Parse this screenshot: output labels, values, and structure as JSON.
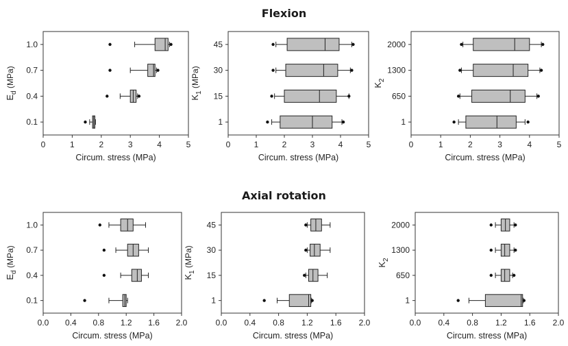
{
  "section_titles": [
    "Flexion",
    "Axial rotation"
  ],
  "chart_data": [
    {
      "type": "box",
      "section": "Flexion",
      "title": "",
      "xlabel": "Circum. stress (MPa)",
      "ylabel": "E",
      "ylabel_sub": "d",
      "ylabel_unit": "(MPa)",
      "xlim": [
        0,
        5
      ],
      "xticks": [
        "0",
        "1",
        "2",
        "3",
        "4",
        "5"
      ],
      "categories": [
        "1.0",
        "0.7",
        "0.4",
        "0.1"
      ],
      "boxes": [
        {
          "wlo": 3.15,
          "q1": 3.85,
          "med": 4.2,
          "q3": 4.3,
          "whi": 4.35,
          "outliers": [
            2.3,
            4.4
          ]
        },
        {
          "wlo": 3.0,
          "q1": 3.6,
          "med": 3.8,
          "q3": 3.85,
          "whi": 3.9,
          "outliers": [
            2.3,
            3.95
          ]
        },
        {
          "wlo": 2.65,
          "q1": 3.0,
          "med": 3.1,
          "q3": 3.2,
          "whi": 3.25,
          "outliers": [
            2.2,
            3.3
          ]
        },
        {
          "wlo": 1.6,
          "q1": 1.7,
          "med": 1.74,
          "q3": 1.78,
          "whi": 1.8,
          "outliers": [
            1.45
          ]
        }
      ]
    },
    {
      "type": "box",
      "section": "Flexion",
      "title": "",
      "xlabel": "Circum. stress (MPa)",
      "ylabel": "K",
      "ylabel_sub": "1",
      "ylabel_unit": "(MPa)",
      "xlim": [
        0,
        5
      ],
      "xticks": [
        "0",
        "1",
        "2",
        "3",
        "4",
        "5"
      ],
      "categories": [
        "45",
        "30",
        "15",
        "1"
      ],
      "boxes": [
        {
          "wlo": 1.7,
          "q1": 2.1,
          "med": 3.45,
          "q3": 3.95,
          "whi": 4.4,
          "outliers": [
            1.6,
            4.45
          ]
        },
        {
          "wlo": 1.7,
          "q1": 2.05,
          "med": 3.4,
          "q3": 3.9,
          "whi": 4.35,
          "outliers": [
            1.6,
            4.4
          ]
        },
        {
          "wlo": 1.65,
          "q1": 2.0,
          "med": 3.25,
          "q3": 3.85,
          "whi": 4.3,
          "outliers": [
            1.55,
            4.3
          ]
        },
        {
          "wlo": 1.55,
          "q1": 1.85,
          "med": 3.0,
          "q3": 3.7,
          "whi": 4.05,
          "outliers": [
            1.4,
            4.1
          ]
        }
      ]
    },
    {
      "type": "box",
      "section": "Flexion",
      "title": "",
      "xlabel": "Circum. stress (MPa)",
      "ylabel": "K",
      "ylabel_sub": "2",
      "ylabel_unit": "",
      "xlim": [
        0,
        5
      ],
      "xticks": [
        "0",
        "1",
        "2",
        "3",
        "4",
        "5"
      ],
      "categories": [
        "2000",
        "1300",
        "650",
        "1"
      ],
      "boxes": [
        {
          "wlo": 1.75,
          "q1": 2.1,
          "med": 3.5,
          "q3": 4.0,
          "whi": 4.4,
          "outliers": [
            1.7,
            4.45
          ]
        },
        {
          "wlo": 1.7,
          "q1": 2.1,
          "med": 3.45,
          "q3": 3.95,
          "whi": 4.35,
          "outliers": [
            1.65,
            4.4
          ]
        },
        {
          "wlo": 1.65,
          "q1": 2.05,
          "med": 3.35,
          "q3": 3.85,
          "whi": 4.25,
          "outliers": [
            1.6,
            4.3
          ]
        },
        {
          "wlo": 1.6,
          "q1": 1.85,
          "med": 2.9,
          "q3": 3.55,
          "whi": 3.85,
          "outliers": [
            1.45,
            3.95
          ]
        }
      ]
    },
    {
      "type": "box",
      "section": "Axial rotation",
      "title": "",
      "xlabel": "Circum. stress (MPa)",
      "ylabel": "E",
      "ylabel_sub": "d",
      "ylabel_unit": "(MPa)",
      "xlim": [
        0,
        2
      ],
      "xticks": [
        "0.0",
        "0.4",
        "0.8",
        "1.2",
        "1.6",
        "2.0"
      ],
      "categories": [
        "1.0",
        "0.7",
        "0.4",
        "0.1"
      ],
      "boxes": [
        {
          "wlo": 0.95,
          "q1": 1.12,
          "med": 1.22,
          "q3": 1.3,
          "whi": 1.48,
          "outliers": [
            0.82
          ]
        },
        {
          "wlo": 1.05,
          "q1": 1.22,
          "med": 1.3,
          "q3": 1.38,
          "whi": 1.52,
          "outliers": [
            0.88
          ]
        },
        {
          "wlo": 1.12,
          "q1": 1.28,
          "med": 1.36,
          "q3": 1.42,
          "whi": 1.52,
          "outliers": [
            0.88
          ]
        },
        {
          "wlo": 0.95,
          "q1": 1.15,
          "med": 1.18,
          "q3": 1.2,
          "whi": 1.22,
          "outliers": [
            0.6
          ]
        }
      ]
    },
    {
      "type": "box",
      "section": "Axial rotation",
      "title": "",
      "xlabel": "Circum. stress (MPa)",
      "ylabel": "K",
      "ylabel_sub": "1",
      "ylabel_unit": "(MPa)",
      "xlim": [
        0,
        2
      ],
      "xticks": [
        "0.0",
        "0.4",
        "0.8",
        "1.2",
        "1.6",
        "2.0"
      ],
      "categories": [
        "45",
        "30",
        "15",
        "1"
      ],
      "boxes": [
        {
          "wlo": 1.2,
          "q1": 1.25,
          "med": 1.32,
          "q3": 1.4,
          "whi": 1.52,
          "outliers": [
            1.18
          ]
        },
        {
          "wlo": 1.2,
          "q1": 1.24,
          "med": 1.3,
          "q3": 1.38,
          "whi": 1.52,
          "outliers": [
            1.18
          ]
        },
        {
          "wlo": 1.18,
          "q1": 1.22,
          "med": 1.28,
          "q3": 1.35,
          "whi": 1.48,
          "outliers": [
            1.16
          ]
        },
        {
          "wlo": 0.78,
          "q1": 0.95,
          "med": 1.22,
          "q3": 1.25,
          "whi": 1.26,
          "outliers": [
            0.6,
            1.27
          ]
        }
      ]
    },
    {
      "type": "box",
      "section": "Axial rotation",
      "title": "",
      "xlabel": "Circum. stress (MPa)",
      "ylabel": "K",
      "ylabel_sub": "2",
      "ylabel_unit": "",
      "xlim": [
        0,
        2
      ],
      "xticks": [
        "0.0",
        "0.4",
        "0.8",
        "1.2",
        "1.6",
        "2.0"
      ],
      "categories": [
        "2000",
        "1300",
        "650",
        "1"
      ],
      "boxes": [
        {
          "wlo": 1.12,
          "q1": 1.2,
          "med": 1.26,
          "q3": 1.32,
          "whi": 1.38,
          "outliers": [
            1.06,
            1.4
          ]
        },
        {
          "wlo": 1.12,
          "q1": 1.2,
          "med": 1.25,
          "q3": 1.32,
          "whi": 1.38,
          "outliers": [
            1.06,
            1.4
          ]
        },
        {
          "wlo": 1.12,
          "q1": 1.2,
          "med": 1.25,
          "q3": 1.32,
          "whi": 1.36,
          "outliers": [
            1.06,
            1.38
          ]
        },
        {
          "wlo": 0.75,
          "q1": 0.98,
          "med": 1.48,
          "q3": 1.5,
          "whi": 1.51,
          "outliers": [
            0.6,
            1.52
          ]
        }
      ]
    }
  ]
}
